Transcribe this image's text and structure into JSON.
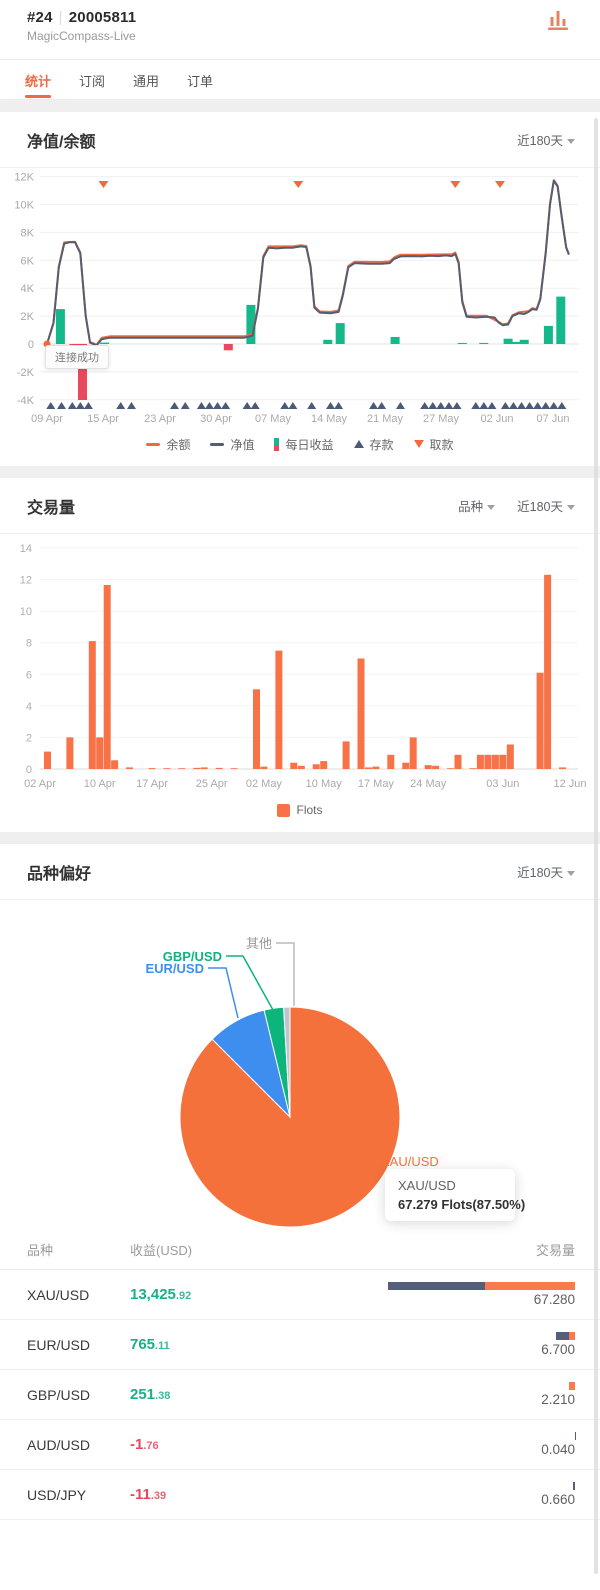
{
  "header": {
    "account_id": "#24",
    "account_number": "20005811",
    "server": "MagicCompass-Live",
    "icon": "bar-chart-icon"
  },
  "tabs": [
    {
      "label": "统计",
      "active": true
    },
    {
      "label": "订阅",
      "active": false
    },
    {
      "label": "通用",
      "active": false
    },
    {
      "label": "订单",
      "active": false
    }
  ],
  "colors": {
    "accent": "#EE6A45",
    "orange_bar": "#F87247",
    "navy": "#555D70",
    "green": "#14B88B",
    "red": "#E8495D",
    "blue": "#3E8EF0",
    "pie_green": "#0CB57C",
    "gray_slice": "#C0C4CC",
    "deposit": "#4A5A78",
    "withdraw": "#F2693C"
  },
  "equity_card": {
    "title": "净值/余额",
    "range_label": "近180天",
    "tooltip": "连接成功",
    "legend": [
      {
        "label": "余额",
        "type": "line",
        "color": "#EE6B42"
      },
      {
        "label": "净值",
        "type": "line",
        "color": "#555D70"
      },
      {
        "label": "每日收益",
        "type": "bar",
        "color": "#14B88B"
      },
      {
        "label": "存款",
        "type": "triangle-up",
        "color": "#4A5A78"
      },
      {
        "label": "取款",
        "type": "triangle-down",
        "color": "#F2693C"
      }
    ],
    "chart_data": {
      "type": "line",
      "y_ticks": [
        "12K",
        "10K",
        "8K",
        "6K",
        "4K",
        "2K",
        "0",
        "-2K",
        "-4K"
      ],
      "ylim_k": [
        -4,
        12
      ],
      "x_ticks": [
        "09 Apr",
        "15 Apr",
        "23 Apr",
        "30 Apr",
        "07 May",
        "14 May",
        "21 May",
        "27 May",
        "02 Jun",
        "07 Jun"
      ],
      "equity_points_k": [
        [
          1.3,
          0
        ],
        [
          2.5,
          1.5
        ],
        [
          3.5,
          5.5
        ],
        [
          4.5,
          7.2
        ],
        [
          5.5,
          7.3
        ],
        [
          6.5,
          7.3
        ],
        [
          7.5,
          6.5
        ],
        [
          8.5,
          2.0
        ],
        [
          9.3,
          0.1
        ],
        [
          10.5,
          -0.1
        ],
        [
          11.5,
          0.35
        ],
        [
          13,
          0.45
        ],
        [
          38,
          0.45
        ],
        [
          39.5,
          0.6
        ],
        [
          40.5,
          2.5
        ],
        [
          41.5,
          6.2
        ],
        [
          42.5,
          6.9
        ],
        [
          44,
          6.85
        ],
        [
          45.5,
          6.9
        ],
        [
          47,
          6.9
        ],
        [
          48.5,
          7.0
        ],
        [
          49.5,
          6.95
        ],
        [
          50.3,
          5.5
        ],
        [
          51,
          2.6
        ],
        [
          52,
          2.25
        ],
        [
          54,
          2.2
        ],
        [
          55.5,
          2.3
        ],
        [
          56.3,
          3.5
        ],
        [
          57.3,
          5.5
        ],
        [
          58.5,
          5.8
        ],
        [
          61,
          5.75
        ],
        [
          63.5,
          5.75
        ],
        [
          65,
          5.8
        ],
        [
          65.8,
          6.1
        ],
        [
          67,
          6.28
        ],
        [
          69,
          6.3
        ],
        [
          71,
          6.28
        ],
        [
          72.5,
          6.32
        ],
        [
          74,
          6.3
        ],
        [
          75.5,
          6.35
        ],
        [
          76.5,
          6.3
        ],
        [
          77.2,
          6.45
        ],
        [
          77.8,
          5.8
        ],
        [
          78.5,
          3.0
        ],
        [
          79.3,
          1.95
        ],
        [
          81,
          1.9
        ],
        [
          83,
          1.95
        ],
        [
          84.5,
          1.9
        ],
        [
          85.2,
          1.55
        ],
        [
          86,
          1.35
        ],
        [
          87,
          1.4
        ],
        [
          87.8,
          2.0
        ],
        [
          89,
          2.2
        ],
        [
          90,
          2.15
        ],
        [
          90.8,
          2.3
        ],
        [
          91.5,
          2.5
        ],
        [
          92.3,
          2.45
        ],
        [
          93,
          3.2
        ],
        [
          94,
          6.5
        ],
        [
          94.8,
          10
        ],
        [
          95.5,
          11.7
        ],
        [
          96.2,
          11.3
        ],
        [
          97,
          9
        ],
        [
          97.8,
          6.9
        ],
        [
          98.3,
          6.4
        ]
      ],
      "balance_points_k": [
        [
          1.3,
          0
        ],
        [
          2.5,
          1.55
        ],
        [
          3.5,
          5.55
        ],
        [
          4.5,
          7.28
        ],
        [
          6.5,
          7.33
        ],
        [
          7.5,
          6.55
        ],
        [
          8.5,
          2.05
        ],
        [
          9.3,
          0.15
        ],
        [
          10.5,
          -0.05
        ],
        [
          11.5,
          0.45
        ],
        [
          13,
          0.55
        ],
        [
          38,
          0.55
        ],
        [
          39.5,
          0.7
        ],
        [
          40.5,
          2.6
        ],
        [
          41.5,
          6.3
        ],
        [
          42.5,
          7.0
        ],
        [
          47,
          7.0
        ],
        [
          48.5,
          7.08
        ],
        [
          49.5,
          7.02
        ],
        [
          50.3,
          5.6
        ],
        [
          51,
          2.7
        ],
        [
          52,
          2.33
        ],
        [
          54,
          2.3
        ],
        [
          55.5,
          2.4
        ],
        [
          56.3,
          3.6
        ],
        [
          57.3,
          5.6
        ],
        [
          58.5,
          5.9
        ],
        [
          63.5,
          5.88
        ],
        [
          65,
          5.92
        ],
        [
          66,
          6.25
        ],
        [
          67,
          6.4
        ],
        [
          71,
          6.4
        ],
        [
          74,
          6.42
        ],
        [
          76.5,
          6.42
        ],
        [
          77.2,
          6.55
        ],
        [
          77.8,
          5.9
        ],
        [
          78.5,
          3.1
        ],
        [
          79.3,
          2.02
        ],
        [
          83,
          2.02
        ],
        [
          85.2,
          1.6
        ],
        [
          86,
          1.42
        ],
        [
          87,
          1.47
        ],
        [
          87.8,
          2.06
        ],
        [
          89,
          2.27
        ],
        [
          90.8,
          2.36
        ],
        [
          91.5,
          2.57
        ],
        [
          92.3,
          2.5
        ],
        [
          93,
          3.28
        ],
        [
          94,
          6.58
        ],
        [
          94.8,
          10.05
        ],
        [
          95.5,
          11.75
        ],
        [
          96.2,
          11.35
        ],
        [
          97,
          9.05
        ],
        [
          97.8,
          6.95
        ],
        [
          98.3,
          6.45
        ]
      ],
      "daily_profit_bars_k": [
        [
          3.8,
          2.5
        ],
        [
          6.3,
          -0.15
        ],
        [
          7.9,
          -4.35
        ],
        [
          12,
          0.1
        ],
        [
          35,
          -0.45
        ],
        [
          39.2,
          2.8
        ],
        [
          53.5,
          0.3
        ],
        [
          55.8,
          1.5
        ],
        [
          66,
          0.5
        ],
        [
          78.5,
          0.08
        ],
        [
          82.5,
          0.08
        ],
        [
          87,
          0.38
        ],
        [
          88.5,
          0.15
        ],
        [
          90,
          0.3
        ],
        [
          94.5,
          1.3
        ],
        [
          96.8,
          3.4
        ]
      ],
      "deposit_marks_pct": [
        2,
        4,
        6,
        7.5,
        9,
        15,
        17,
        25,
        27,
        30,
        31.5,
        33,
        34.5,
        38.5,
        40,
        45.5,
        47,
        50.5,
        54,
        55.5,
        62,
        63.5,
        67,
        71.5,
        73,
        74.5,
        76,
        77.5,
        81,
        82.5,
        84,
        86.5,
        88,
        89.5,
        91,
        92.5,
        94,
        95.5,
        97
      ],
      "withdraw_marks_pct": [
        11.8,
        48,
        77.2,
        85.5
      ]
    }
  },
  "volume_card": {
    "title": "交易量",
    "symbol_filter_label": "品种",
    "range_label": "近180天",
    "legend": [
      {
        "label": "Flots",
        "color": "#F87247"
      }
    ],
    "chart_data": {
      "type": "bar",
      "ylabel": "Flots",
      "ylim": [
        0,
        14
      ],
      "y_ticks": [
        0,
        2,
        4,
        6,
        8,
        10,
        12,
        14
      ],
      "x_tick_positions": [
        [
          0,
          "02 Apr"
        ],
        [
          8,
          "10 Apr"
        ],
        [
          15,
          "17 Apr"
        ],
        [
          23,
          "25 Apr"
        ],
        [
          30,
          "02 May"
        ],
        [
          38,
          "10 May"
        ],
        [
          45,
          "17 May"
        ],
        [
          52,
          "24 May"
        ],
        [
          62,
          "03 Jun"
        ],
        [
          71,
          "12 Jun"
        ]
      ],
      "num_days": 72,
      "values": [
        0,
        1.1,
        0,
        0,
        2.0,
        0,
        0,
        8.1,
        2.0,
        11.65,
        0.55,
        0,
        0.1,
        0,
        0,
        0.06,
        0,
        0.05,
        0,
        0.05,
        0,
        0.07,
        0.1,
        0,
        0.07,
        0,
        0.05,
        0,
        0,
        5.05,
        0.15,
        0,
        7.5,
        0,
        0.4,
        0.2,
        0,
        0.3,
        0.5,
        0,
        0,
        1.75,
        0,
        7.0,
        0.1,
        0.15,
        0,
        0.9,
        0,
        0.4,
        2.0,
        0,
        0.25,
        0.2,
        0,
        0.05,
        0.9,
        0,
        0.05,
        0.9,
        0.9,
        0.9,
        0.9,
        1.55,
        0,
        0,
        0,
        6.1,
        12.3,
        0,
        0.1,
        0
      ]
    }
  },
  "preference_card": {
    "title": "品种偏好",
    "range_label": "近180天",
    "tooltip": {
      "title": "XAU/USD",
      "value": "67.279 Flots(87.50%)"
    },
    "chart_data": {
      "type": "pie",
      "slices": [
        {
          "label": "XAU/USD",
          "value": 67.279,
          "pct": 87.5,
          "color": "#F4713C"
        },
        {
          "label": "EUR/USD",
          "value": 6.7,
          "pct": 8.71,
          "color": "#3E8EF0"
        },
        {
          "label": "GBP/USD",
          "value": 2.21,
          "pct": 2.87,
          "color": "#0CB57C"
        },
        {
          "label": "其他",
          "value": 0.7,
          "pct": 0.92,
          "color": "#C0C4CC"
        }
      ]
    },
    "table": {
      "headers": [
        "品种",
        "收益(USD)",
        "交易量"
      ],
      "rows": [
        {
          "symbol": "XAU/USD",
          "profit_int": "13,425",
          "profit_dec": "92",
          "negative": false,
          "volume": 67.28,
          "volume_label": "67.280",
          "orange_frac": 0.48
        },
        {
          "symbol": "EUR/USD",
          "profit_int": "765",
          "profit_dec": "11",
          "negative": false,
          "volume": 6.7,
          "volume_label": "6.700",
          "orange_frac": 0.3
        },
        {
          "symbol": "GBP/USD",
          "profit_int": "251",
          "profit_dec": "38",
          "negative": false,
          "volume": 2.21,
          "volume_label": "2.210",
          "orange_frac": 1.0
        },
        {
          "symbol": "AUD/USD",
          "profit_int": "-1",
          "profit_dec": "76",
          "negative": true,
          "volume": 0.04,
          "volume_label": "0.040",
          "orange_frac": 0.0
        },
        {
          "symbol": "USD/JPY",
          "profit_int": "-11",
          "profit_dec": "39",
          "negative": true,
          "volume": 0.66,
          "volume_label": "0.660",
          "orange_frac": 0.0
        }
      ]
    }
  }
}
